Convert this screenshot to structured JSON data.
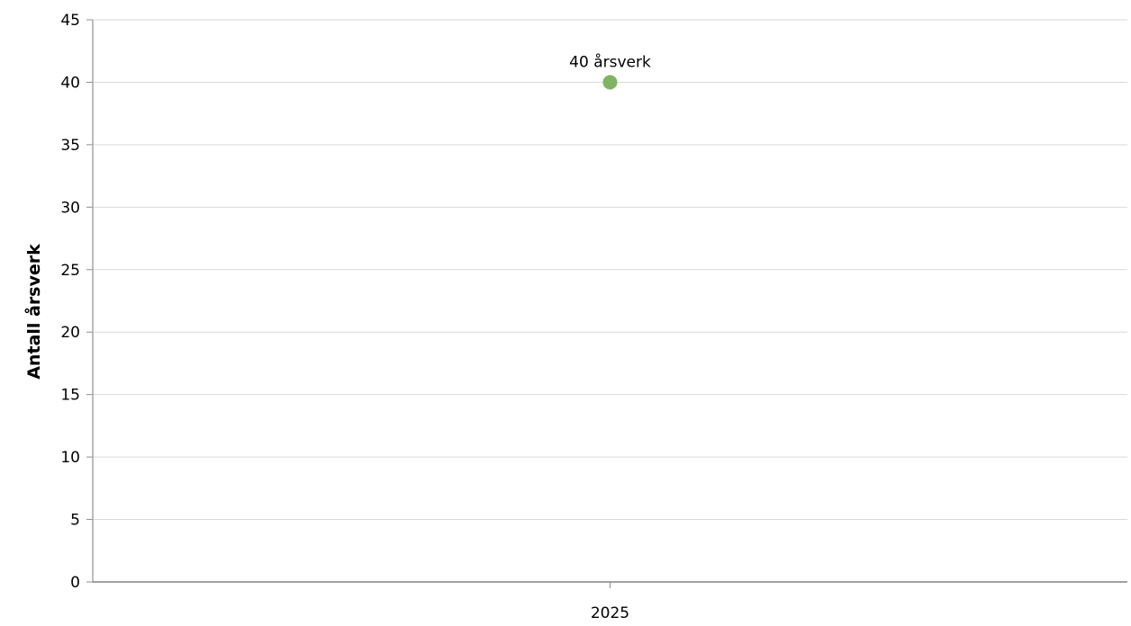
{
  "chart_data": {
    "type": "scatter",
    "title": "",
    "xlabel": "",
    "ylabel": "Antall årsverk",
    "categories": [
      "2025"
    ],
    "series": [
      {
        "values": [
          40
        ],
        "data_labels": [
          "40 årsverk"
        ],
        "color": "#80b463"
      }
    ],
    "ylim": [
      0,
      45
    ],
    "yticks": [
      "0",
      "5",
      "10",
      "15",
      "20",
      "25",
      "30",
      "35",
      "40",
      "45"
    ],
    "grid": true,
    "legend": "none"
  }
}
